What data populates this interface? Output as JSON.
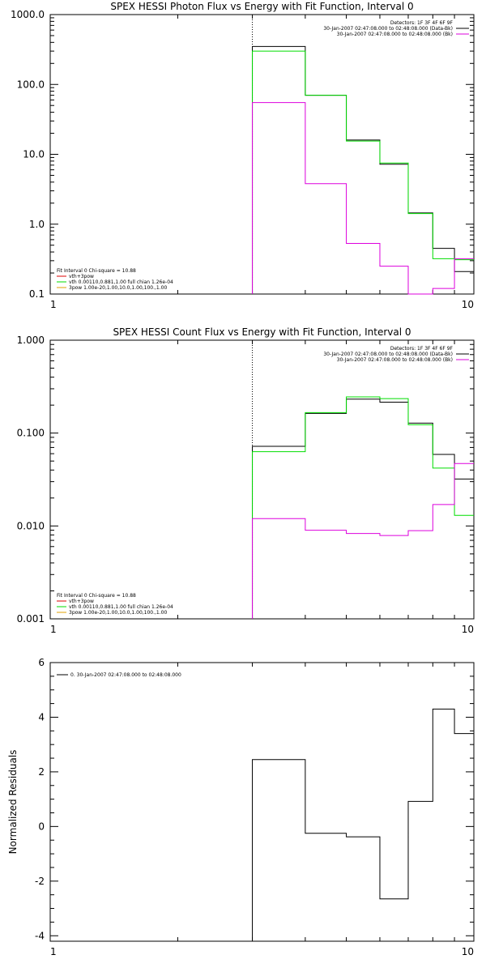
{
  "chart_data": [
    {
      "type": "line",
      "title": "SPEX HESSI Photon Flux vs Energy with Fit Function, Interval 0",
      "xscale": "log",
      "yscale": "log",
      "xlim": [
        1,
        10
      ],
      "ylim": [
        0.1,
        1000
      ],
      "xticks": [
        1,
        10
      ],
      "xtick_labels": [
        "1",
        "10"
      ],
      "yticks": [
        0.1,
        1,
        10,
        100,
        1000
      ],
      "ytick_labels": [
        "0.1",
        "1.0",
        "10.0",
        "100.0",
        "1000.0"
      ],
      "interval_marker_x": 3,
      "bin_edges": [
        3,
        4,
        5,
        6,
        7,
        8,
        9,
        10
      ],
      "series": [
        {
          "color": "#000000",
          "values": [
            350,
            70,
            16,
            7.2,
            1.45,
            0.45,
            0.21
          ]
        },
        {
          "color": "#00dd00",
          "values": [
            300,
            70,
            15.5,
            7.5,
            1.42,
            0.32,
            0.31
          ]
        },
        {
          "color": "#dd00dd",
          "values": [
            55,
            3.8,
            0.53,
            0.25,
            0.095,
            0.12,
            0.32
          ]
        }
      ],
      "legend_top": [
        "Detectors: 1F 3F 4F 6F 9F",
        "30-Jan-2007 02:47:08.000 to 02:48:08.000 (Data-Bk)",
        "30-Jan-2007 02:47:08.000 to 02:48:08.000 (Bk)"
      ],
      "legend_top_colors": [
        "",
        "#000000",
        "#dd00dd"
      ],
      "legend_bottom": [
        "Fit Interval 0   Chi-square = 10.88",
        "vth+3pow",
        "vth 0.00110,0.881,1.00  full chian 1.26e-04",
        "3pow 1.00e-20,1.00,10.0,1.00,100.,1.00"
      ],
      "legend_bottom_colors": [
        "",
        "#dd0000",
        "#00dd00",
        "#e0a000"
      ]
    },
    {
      "type": "line",
      "title": "SPEX HESSI Count Flux vs Energy with Fit Function, Interval 0",
      "xscale": "log",
      "yscale": "log",
      "xlim": [
        1,
        10
      ],
      "ylim": [
        0.001,
        1
      ],
      "xticks": [
        1,
        10
      ],
      "xtick_labels": [
        "1",
        "10"
      ],
      "yticks": [
        0.001,
        0.01,
        0.1,
        1
      ],
      "ytick_labels": [
        "0.001",
        "0.010",
        "0.100",
        "1.000"
      ],
      "interval_marker_x": 3,
      "bin_edges": [
        3,
        4,
        5,
        6,
        7,
        8,
        9,
        10
      ],
      "series": [
        {
          "color": "#000000",
          "values": [
            0.072,
            0.163,
            0.232,
            0.215,
            0.128,
            0.059,
            0.032
          ]
        },
        {
          "color": "#00dd00",
          "values": [
            0.063,
            0.166,
            0.245,
            0.235,
            0.123,
            0.042,
            0.013
          ]
        },
        {
          "color": "#dd00dd",
          "values": [
            0.012,
            0.009,
            0.0083,
            0.0079,
            0.0089,
            0.017,
            0.047
          ]
        }
      ],
      "legend_top": [
        "Detectors: 1F 3F 4F 6F 9F",
        "30-Jan-2007 02:47:08.000 to 02:48:08.000 (Data-Bk)",
        "30-Jan-2007 02:47:08.000 to 02:48:08.000 (Bk)"
      ],
      "legend_top_colors": [
        "",
        "#000000",
        "#dd00dd"
      ],
      "legend_bottom": [
        "Fit Interval 0   Chi-square = 10.88",
        "vth+3pow",
        "vth 0.00110,0.881,1.00  full chian 1.26e-04",
        "3pow 1.00e-20,1.00,10.0,1.00,100.,1.00"
      ],
      "legend_bottom_colors": [
        "",
        "#dd0000",
        "#00dd00",
        "#e0a000"
      ]
    },
    {
      "type": "line",
      "title": "",
      "xscale": "log",
      "yscale": "linear",
      "ylabel": "Normalized Residuals",
      "xlim": [
        1,
        10
      ],
      "ylim": [
        -4.2,
        6
      ],
      "xticks": [
        1,
        10
      ],
      "xtick_labels": [
        "1",
        "10"
      ],
      "yticks": [
        -4,
        -2,
        0,
        2,
        4,
        6
      ],
      "ytick_labels": [
        "-4",
        "-2",
        "0",
        "2",
        "4",
        "6"
      ],
      "bin_edges": [
        3,
        4,
        5,
        6,
        7,
        8,
        9,
        10
      ],
      "series": [
        {
          "color": "#000000",
          "values": [
            2.45,
            -0.25,
            -0.38,
            -2.65,
            0.92,
            4.3,
            3.4
          ]
        }
      ],
      "legend_top": [
        "0. 30-Jan-2007 02:47:08.000 to 02:48:08.000"
      ],
      "legend_top_colors": [
        "#000000"
      ]
    }
  ]
}
